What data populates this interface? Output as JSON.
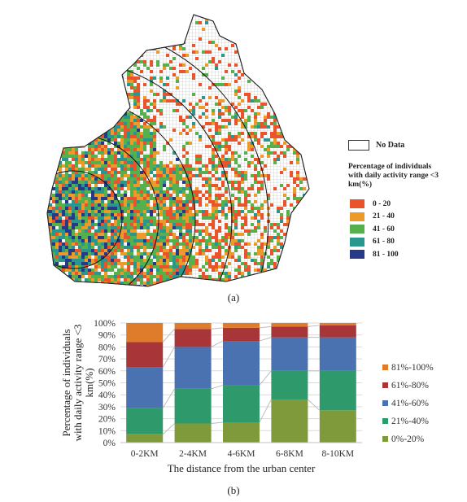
{
  "map": {
    "legend_nodata": "No Data",
    "legend_title_line1": "Percentage of individuals",
    "legend_title_line2": "with daily activity range <3 km(%)",
    "legend_items": [
      {
        "label": "0 - 20",
        "color": "#e9542d"
      },
      {
        "label": "21 - 40",
        "color": "#ec9a2a"
      },
      {
        "label": "41 - 60",
        "color": "#56b04c"
      },
      {
        "label": "61 - 80",
        "color": "#2a978f"
      },
      {
        "label": "81 - 100",
        "color": "#263a87"
      }
    ],
    "caption": "(a)"
  },
  "chart_data": {
    "type": "bar",
    "stacked": true,
    "percent_scale": true,
    "categories": [
      "0-2KM",
      "2-4KM",
      "4-6KM",
      "6-8KM",
      "8-10KM"
    ],
    "series": [
      {
        "name": "0%-20%",
        "color": "#7f9a3a",
        "values": [
          7,
          16,
          17,
          36,
          27
        ]
      },
      {
        "name": "21%-40%",
        "color": "#2e9a6c",
        "values": [
          22,
          29,
          31,
          24,
          33
        ]
      },
      {
        "name": "41%-60%",
        "color": "#4a72b0",
        "values": [
          34,
          35,
          37,
          28,
          28
        ]
      },
      {
        "name": "61%-80%",
        "color": "#a83638",
        "values": [
          21,
          15,
          11,
          9,
          10
        ]
      },
      {
        "name": "81%-100%",
        "color": "#df7c2c",
        "values": [
          16,
          5,
          4,
          3,
          2
        ]
      }
    ],
    "ylabel_lines": [
      "Percentage of individuals",
      "with daily activity range <3",
      "km(%)"
    ],
    "xlabel": "The distance from the urban center",
    "ylim": [
      0,
      100
    ],
    "yticks": [
      "0%",
      "10%",
      "20%",
      "30%",
      "40%",
      "50%",
      "60%",
      "70%",
      "80%",
      "90%",
      "100%"
    ],
    "grid": true,
    "legend_position": "right",
    "legend_order": [
      "81%-100%",
      "61%-80%",
      "41%-60%",
      "21%-40%",
      "0%-20%"
    ],
    "caption": "(b)"
  }
}
